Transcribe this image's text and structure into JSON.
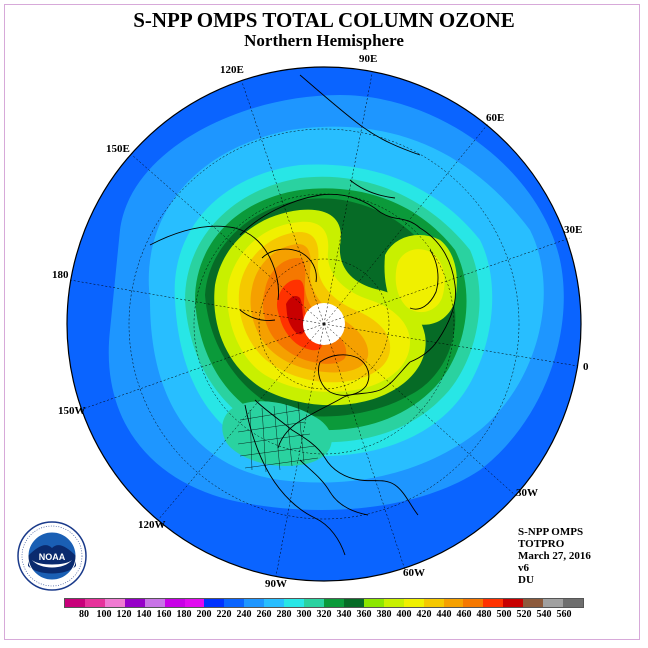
{
  "header": {
    "title": "S-NPP OMPS TOTAL COLUMN OZONE",
    "subtitle": "Northern Hemisphere"
  },
  "map": {
    "projection": "north-polar-stereographic",
    "longitude_labels": [
      "90E",
      "60E",
      "30E",
      "0",
      "30W",
      "60W",
      "90W",
      "120W",
      "150W",
      "180",
      "150E",
      "120E"
    ]
  },
  "info": {
    "lines": [
      "S-NPP OMPS",
      "TOTPRO",
      "March 27, 2016",
      "v6",
      "DU"
    ]
  },
  "logo": {
    "name": "NOAA"
  },
  "colorbar": {
    "unit": "DU",
    "labels": [
      "80",
      "100",
      "120",
      "140",
      "160",
      "180",
      "200",
      "220",
      "240",
      "260",
      "280",
      "300",
      "320",
      "340",
      "360",
      "380",
      "400",
      "420",
      "440",
      "460",
      "480",
      "500",
      "520",
      "540",
      "560"
    ],
    "colors": [
      "#c8007a",
      "#e6329b",
      "#f07ad2",
      "#9600c8",
      "#c873e6",
      "#c800e6",
      "#e10af0",
      "#0032ff",
      "#0a64ff",
      "#1e96ff",
      "#28beff",
      "#28e6e6",
      "#2ad2a0",
      "#0b9a3a",
      "#066b26",
      "#8ce600",
      "#c8f000",
      "#f0f000",
      "#f5c800",
      "#f5a000",
      "#f57800",
      "#ff3200",
      "#c80000",
      "#8c5a3c",
      "#a0a0a0",
      "#6e6e6e"
    ]
  }
}
